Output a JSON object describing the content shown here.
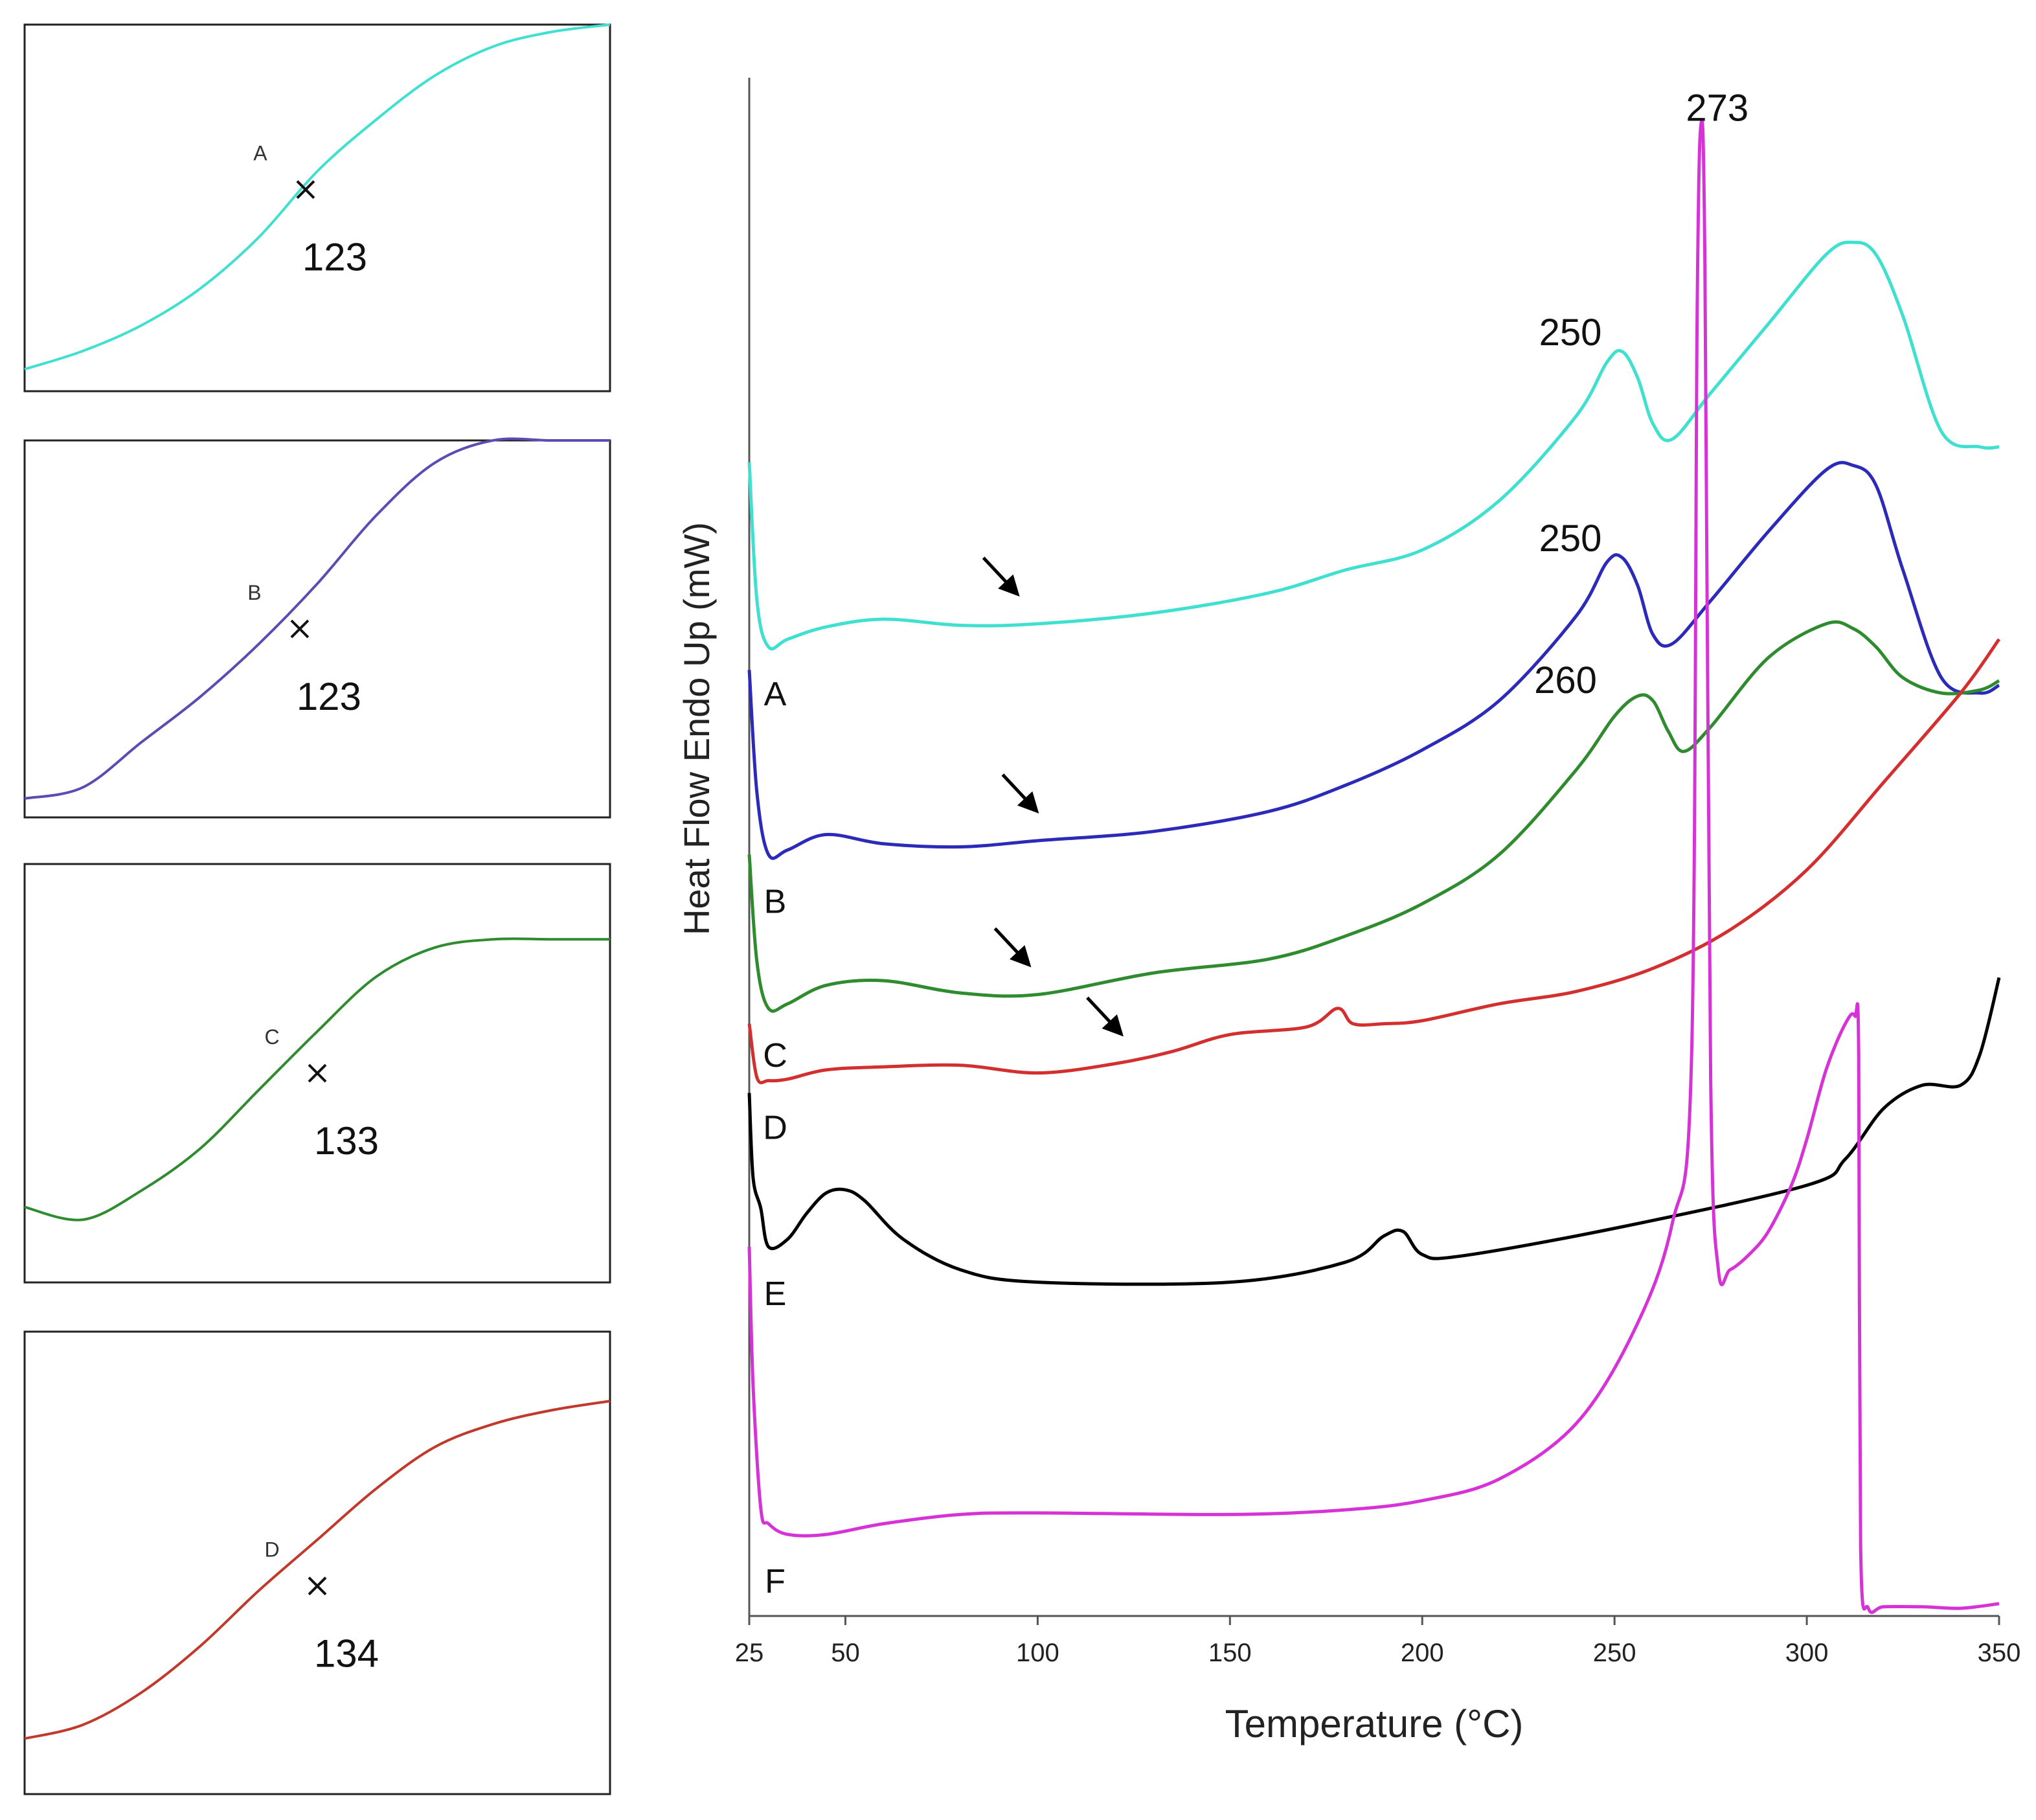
{
  "chart_data": [
    {
      "type": "line",
      "panel": "inset",
      "label": "A",
      "annotation": "123",
      "color": "#40E0D0",
      "x": [
        0.0,
        0.1,
        0.2,
        0.3,
        0.4,
        0.5,
        0.6,
        0.7,
        0.8,
        0.9,
        1.0
      ],
      "y": [
        0.06,
        0.11,
        0.18,
        0.28,
        0.42,
        0.6,
        0.74,
        0.86,
        0.94,
        0.98,
        1.0
      ],
      "marker": {
        "x": 0.48,
        "y": 0.55
      }
    },
    {
      "type": "line",
      "panel": "inset",
      "label": "B",
      "annotation": "123",
      "color": "#5B4BB2",
      "x": [
        0.0,
        0.1,
        0.2,
        0.3,
        0.4,
        0.5,
        0.6,
        0.7,
        0.8,
        0.9,
        1.0
      ],
      "y": [
        0.05,
        0.08,
        0.2,
        0.32,
        0.46,
        0.62,
        0.8,
        0.94,
        1.0,
        1.0,
        1.0
      ],
      "marker": {
        "x": 0.47,
        "y": 0.5
      }
    },
    {
      "type": "line",
      "panel": "inset",
      "label": "C",
      "annotation": "133",
      "color": "#2E8B2E",
      "x": [
        0.0,
        0.1,
        0.2,
        0.3,
        0.4,
        0.5,
        0.6,
        0.7,
        0.8,
        0.9,
        1.0
      ],
      "y": [
        0.18,
        0.15,
        0.22,
        0.32,
        0.46,
        0.6,
        0.73,
        0.8,
        0.82,
        0.82,
        0.82
      ],
      "marker": {
        "x": 0.5,
        "y": 0.5
      }
    },
    {
      "type": "line",
      "panel": "inset",
      "label": "D",
      "annotation": "134",
      "color": "#C0392B",
      "x": [
        0.0,
        0.1,
        0.2,
        0.3,
        0.4,
        0.5,
        0.6,
        0.7,
        0.8,
        0.9,
        1.0
      ],
      "y": [
        0.12,
        0.15,
        0.22,
        0.32,
        0.44,
        0.55,
        0.66,
        0.75,
        0.8,
        0.83,
        0.85
      ],
      "marker": {
        "x": 0.5,
        "y": 0.45
      }
    },
    {
      "type": "line",
      "panel": "main",
      "xlabel": "Temperature (°C)",
      "ylabel": "Heat Flow Endo Up (mW)",
      "xlim": [
        25,
        350
      ],
      "ylim": [
        0,
        100
      ],
      "xticks": [
        25,
        50,
        100,
        150,
        200,
        250,
        300,
        350
      ],
      "series": [
        {
          "name": "A",
          "color": "#40E0D0",
          "x": [
            25,
            27,
            30,
            35,
            45,
            60,
            80,
            100,
            130,
            160,
            180,
            200,
            220,
            240,
            248,
            252,
            256,
            260,
            265,
            275,
            290,
            305,
            312,
            318,
            325,
            335,
            345,
            350
          ],
          "y": [
            75,
            66,
            63,
            63.5,
            64.3,
            64.8,
            64.4,
            64.5,
            65.2,
            66.5,
            68,
            69.3,
            72.5,
            78,
            81.5,
            82.2,
            80.5,
            77.5,
            76.5,
            79.5,
            84,
            88.5,
            89.3,
            88.5,
            84.5,
            77,
            76,
            76
          ]
        },
        {
          "name": "B",
          "color": "#2C2AB8",
          "x": [
            25,
            27,
            30,
            35,
            45,
            60,
            80,
            100,
            130,
            160,
            180,
            200,
            220,
            240,
            248,
            252,
            256,
            260,
            265,
            275,
            290,
            305,
            312,
            318,
            325,
            335,
            345,
            350
          ],
          "y": [
            61.5,
            53.5,
            49.5,
            49.8,
            50.8,
            50.2,
            50,
            50.4,
            51,
            52.3,
            54,
            56.3,
            59.5,
            65,
            68.5,
            68.8,
            67,
            63.8,
            63.2,
            66,
            70.5,
            74.5,
            74.8,
            73.5,
            68,
            61,
            60,
            60.5
          ]
        },
        {
          "name": "C",
          "color": "#2E8B2E",
          "x": [
            25,
            27,
            30,
            35,
            45,
            60,
            80,
            100,
            130,
            160,
            180,
            200,
            220,
            240,
            250,
            256,
            260,
            264,
            268,
            275,
            290,
            305,
            312,
            318,
            325,
            335,
            345,
            350
          ],
          "y": [
            49.5,
            42.5,
            39.5,
            39.8,
            41,
            41.3,
            40.5,
            40.4,
            41.8,
            42.7,
            44.2,
            46.3,
            49.5,
            55,
            58.5,
            59.8,
            59.5,
            57.5,
            56.2,
            57.8,
            62.3,
            64.5,
            64.2,
            63,
            61,
            60,
            60.2,
            60.8
          ]
        },
        {
          "name": "D",
          "color": "#D32F2F",
          "x": [
            25,
            27,
            30,
            35,
            45,
            60,
            80,
            100,
            120,
            135,
            150,
            170,
            178,
            182,
            190,
            200,
            220,
            240,
            260,
            280,
            300,
            320,
            340,
            350
          ],
          "y": [
            38.5,
            35,
            34.8,
            34.9,
            35.5,
            35.7,
            35.8,
            35.3,
            35.9,
            36.7,
            37.8,
            38.3,
            39.5,
            38.5,
            38.5,
            38.7,
            39.8,
            40.6,
            42.1,
            44.6,
            48.5,
            54.2,
            60,
            63.5
          ]
        },
        {
          "name": "E",
          "color": "#000000",
          "x": [
            25,
            26,
            28,
            30,
            35,
            40,
            45,
            50,
            55,
            65,
            80,
            100,
            150,
            180,
            190,
            195,
            200,
            210,
            250,
            300,
            310,
            320,
            330,
            340,
            345,
            350
          ],
          "y": [
            34,
            28.5,
            26.5,
            24,
            24.5,
            26.2,
            27.5,
            27.7,
            27,
            24.5,
            22.5,
            21.7,
            21.7,
            23,
            24.7,
            25,
            23.5,
            23.4,
            25.2,
            28,
            29.7,
            33,
            34.5,
            34.5,
            36.5,
            41.5
          ]
        },
        {
          "name": "F",
          "color": "#D633D6",
          "x": [
            25,
            26,
            28,
            30,
            35,
            45,
            60,
            80,
            100,
            150,
            180,
            200,
            220,
            240,
            255,
            265,
            270,
            271.5,
            272.5,
            273.5,
            275,
            277,
            280,
            285,
            290,
            296,
            300,
            305,
            310,
            312.5,
            313.5,
            314,
            316,
            320,
            330,
            340,
            350
          ],
          "y": [
            24,
            15,
            7,
            6,
            5.3,
            5.3,
            6,
            6.6,
            6.7,
            6.6,
            6.9,
            7.5,
            8.9,
            12.5,
            18.5,
            25.5,
            36,
            85,
            97,
            88,
            35,
            22.5,
            22.5,
            23.5,
            25,
            28,
            31,
            35.5,
            38.5,
            39,
            36.5,
            4.5,
            0.5,
            0.6,
            0.6,
            0.5,
            0.8
          ]
        }
      ],
      "peak_labels": [
        {
          "text": "273",
          "x": 273,
          "y": 97
        },
        {
          "text": "250",
          "x": 252,
          "y": 82.2
        },
        {
          "text": "250",
          "x": 252,
          "y": 68.8
        },
        {
          "text": "260",
          "x": 260,
          "y": 59.8
        }
      ],
      "arrows": [
        {
          "series": "A",
          "x": 96,
          "y": 64.5
        },
        {
          "series": "B",
          "x": 101,
          "y": 50.4
        },
        {
          "series": "C",
          "x": 99,
          "y": 40.4
        },
        {
          "series": "D",
          "x": 123,
          "y": 35.9
        }
      ]
    }
  ]
}
